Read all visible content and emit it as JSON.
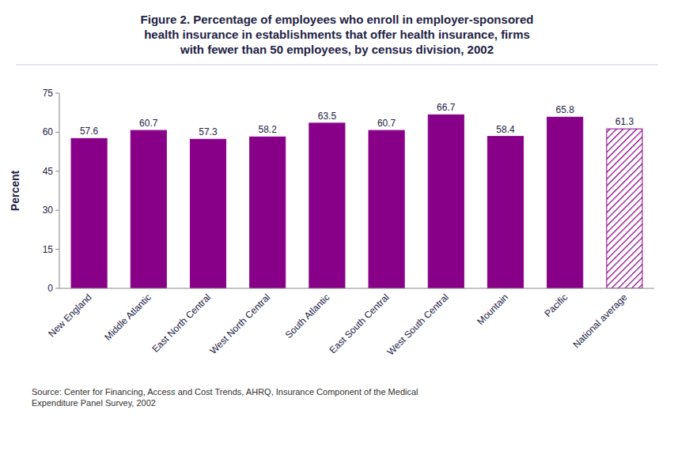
{
  "chart_data": {
    "type": "bar",
    "title": "Figure 2. Percentage of employees who enroll in employer-sponsored\nhealth insurance in establishments that offer health insurance, firms\nwith fewer than 50 employees, by census division, 2002",
    "categories": [
      "New England",
      "Middle Atlantic",
      "East North Central",
      "West North Central",
      "South Atlantic",
      "East South Central",
      "West South Central",
      "Mountain",
      "Pacific",
      "National average"
    ],
    "values": [
      57.6,
      60.7,
      57.3,
      58.2,
      63.5,
      60.7,
      66.7,
      58.4,
      65.8,
      61.3
    ],
    "color": "#880088",
    "ylabel": "Percent",
    "ylim": [
      0,
      75
    ],
    "yticks": [
      0,
      15,
      30,
      45,
      60,
      75
    ],
    "grid": false,
    "data_labels": true,
    "source": "Source: Center for Financing, Access and Cost Trends, AHRQ, Insurance Component of the Medical\nExpenditure Panel Survey, 2002"
  }
}
